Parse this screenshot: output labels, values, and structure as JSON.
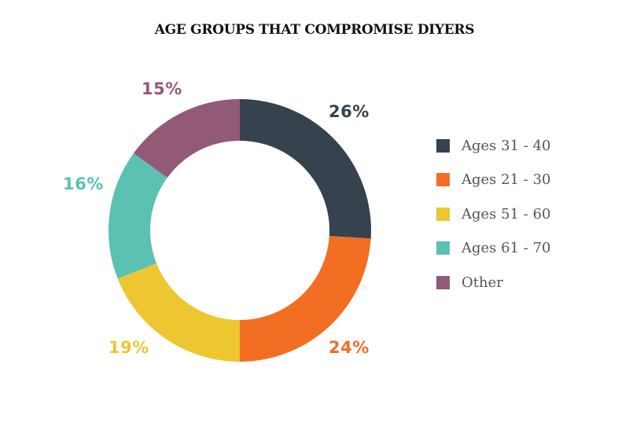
{
  "chart_data": {
    "type": "pie",
    "variant": "donut",
    "title": "AGE GROUPS THAT COMPROMISE DIYERS",
    "categories": [
      "Ages 31 - 40",
      "Ages 21 - 30",
      "Ages 51 - 60",
      "Ages 61 - 70",
      "Other"
    ],
    "values": [
      26,
      24,
      19,
      16,
      15
    ],
    "value_labels": [
      "26%",
      "24%",
      "19%",
      "16%",
      "15%"
    ],
    "colors": [
      "#36424e",
      "#f26e22",
      "#edc631",
      "#5bc1b2",
      "#935a77"
    ],
    "legend_position": "right",
    "start_angle_deg": 0,
    "direction": "clockwise"
  },
  "title": "AGE GROUPS THAT COMPROMISE DIYERS",
  "labels": {
    "ages_31_40": "26%",
    "ages_21_30": "24%",
    "ages_51_60": "19%",
    "ages_61_70": "16%",
    "other": "15%"
  },
  "legend": {
    "items": [
      {
        "label": "Ages 31 - 40",
        "color": "#36424e"
      },
      {
        "label": "Ages 21 - 30",
        "color": "#f26e22"
      },
      {
        "label": "Ages 51 - 60",
        "color": "#edc631"
      },
      {
        "label": "Ages 61 - 70",
        "color": "#5bc1b2"
      },
      {
        "label": "Other",
        "color": "#935a77"
      }
    ]
  }
}
